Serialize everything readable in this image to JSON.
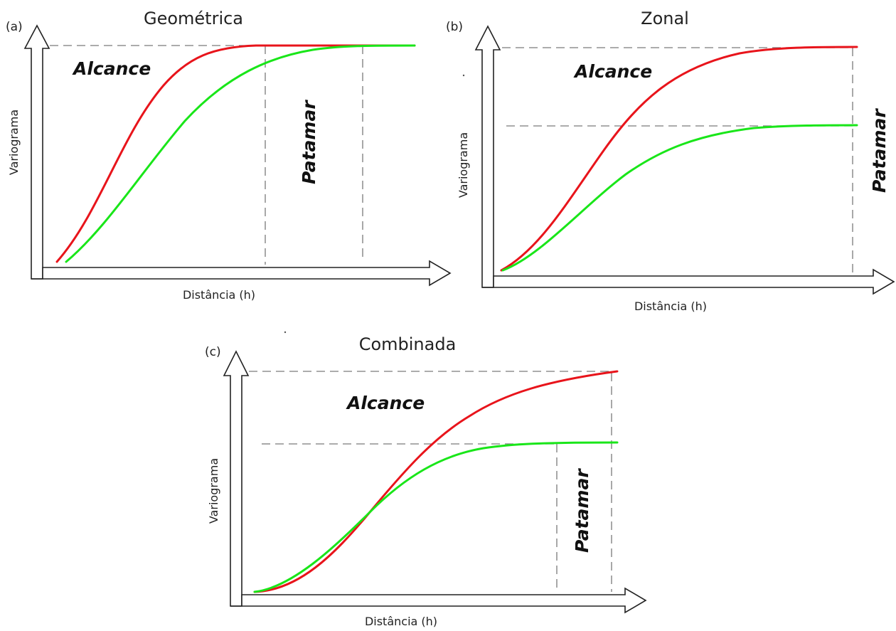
{
  "panels": [
    {
      "id": "a",
      "label": "(a)",
      "title": "Geométrica",
      "ylabel": "Variograma",
      "xlabel": "Distância (h)",
      "annot_range": "Alcance",
      "annot_sill": "Patamar",
      "series": [
        {
          "color": "red",
          "sill": 1.0,
          "range": 0.58
        },
        {
          "color": "green",
          "sill": 1.0,
          "range": 0.85
        }
      ]
    },
    {
      "id": "b",
      "label": "(b)",
      "title": "Zonal",
      "ylabel": "Variograma",
      "xlabel": "Distância (h)",
      "annot_range": "Alcance",
      "annot_sill": "Patamar",
      "series": [
        {
          "color": "red",
          "sill": 1.0,
          "range": 1.0
        },
        {
          "color": "green",
          "sill": 0.65,
          "range": 1.0
        }
      ]
    },
    {
      "id": "c",
      "label": "(c)",
      "title": "Combinada",
      "ylabel": "Variograma",
      "xlabel": "Distância (h)",
      "annot_range": "Alcance",
      "annot_sill": "Patamar",
      "series": [
        {
          "color": "red",
          "sill": 1.0,
          "range": 1.0
        },
        {
          "color": "green",
          "sill": 0.6,
          "range": 0.85
        }
      ]
    }
  ],
  "colors": {
    "red": "#e8141b",
    "green": "#19e619",
    "dash": "#7a7a7a",
    "axis": "#222222"
  }
}
